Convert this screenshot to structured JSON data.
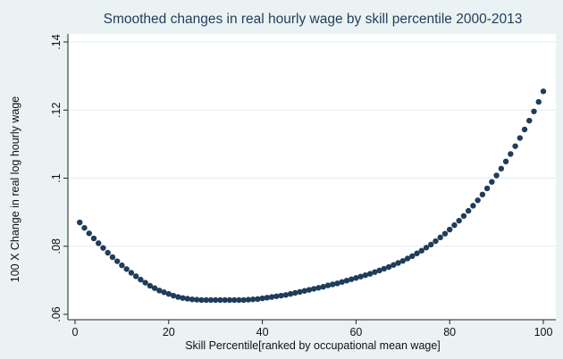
{
  "chart_data": {
    "type": "scatter",
    "title": "Smoothed changes in real hourly wage by skill percentile 2000-2013",
    "xlabel": "Skill Percentile[ranked by occupational mean wage]",
    "ylabel": "100 X Change in real log hourly wage",
    "xlim": [
      0,
      100
    ],
    "ylim": [
      0.06,
      0.14
    ],
    "x_ticks": [
      0,
      20,
      40,
      60,
      80,
      100
    ],
    "x_tick_labels": [
      "0",
      "20",
      "40",
      "60",
      "80",
      "100"
    ],
    "y_ticks": [
      0.06,
      0.08,
      0.1,
      0.12,
      0.14
    ],
    "y_tick_labels": [
      ".06",
      ".08",
      ".1",
      ".12",
      ".14"
    ],
    "grid": "horizontal",
    "legend": "none",
    "marker_color": "#1f3d5a",
    "x": [
      1,
      2,
      3,
      4,
      5,
      6,
      7,
      8,
      9,
      10,
      11,
      12,
      13,
      14,
      15,
      16,
      17,
      18,
      19,
      20,
      21,
      22,
      23,
      24,
      25,
      26,
      27,
      28,
      29,
      30,
      31,
      32,
      33,
      34,
      35,
      36,
      37,
      38,
      39,
      40,
      41,
      42,
      43,
      44,
      45,
      46,
      47,
      48,
      49,
      50,
      51,
      52,
      53,
      54,
      55,
      56,
      57,
      58,
      59,
      60,
      61,
      62,
      63,
      64,
      65,
      66,
      67,
      68,
      69,
      70,
      71,
      72,
      73,
      74,
      75,
      76,
      77,
      78,
      79,
      80,
      81,
      82,
      83,
      84,
      85,
      86,
      87,
      88,
      89,
      90,
      91,
      92,
      93,
      94,
      95,
      96,
      97,
      98,
      99,
      100
    ],
    "y": [
      0.087,
      0.0854,
      0.0838,
      0.0823,
      0.0809,
      0.0795,
      0.0781,
      0.0768,
      0.0756,
      0.0744,
      0.0733,
      0.0722,
      0.0712,
      0.0702,
      0.0693,
      0.0684,
      0.0677,
      0.067,
      0.0665,
      0.066,
      0.0655,
      0.0651,
      0.0648,
      0.0646,
      0.0644,
      0.0643,
      0.0642,
      0.0642,
      0.0642,
      0.0642,
      0.0642,
      0.0642,
      0.0642,
      0.0642,
      0.0642,
      0.0642,
      0.0643,
      0.0644,
      0.0645,
      0.0647,
      0.0649,
      0.0651,
      0.0653,
      0.0655,
      0.0657,
      0.066,
      0.0663,
      0.0666,
      0.0669,
      0.0672,
      0.0675,
      0.0678,
      0.0681,
      0.0685,
      0.0688,
      0.0691,
      0.0695,
      0.0699,
      0.0703,
      0.0707,
      0.0711,
      0.0715,
      0.0719,
      0.0724,
      0.0729,
      0.0734,
      0.0739,
      0.0745,
      0.0751,
      0.0757,
      0.0764,
      0.0771,
      0.0779,
      0.0787,
      0.0796,
      0.0805,
      0.0815,
      0.0826,
      0.0837,
      0.0849,
      0.0862,
      0.0875,
      0.0889,
      0.0904,
      0.0919,
      0.0935,
      0.0952,
      0.097,
      0.0989,
      0.1008,
      0.1028,
      0.1049,
      0.1071,
      0.1094,
      0.1118,
      0.1143,
      0.1169,
      0.1196,
      0.1224,
      0.1255
    ]
  }
}
